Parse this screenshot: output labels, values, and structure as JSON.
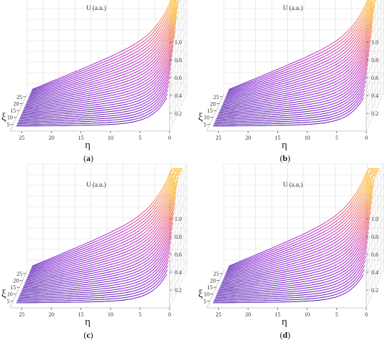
{
  "chart_data": [
    {
      "panel": "a",
      "type": "surface3d",
      "title": "U (a.u.)",
      "caption": "a",
      "xlabel": "η",
      "ylabel": "ξ",
      "x_ticks": [
        "25",
        "20",
        "15",
        "10",
        "5",
        "0"
      ],
      "y_ticks": [
        "5",
        "10",
        "15",
        "20",
        "25"
      ],
      "z_ticks": [
        "0.2",
        "0.4",
        "0.6",
        "0.8",
        "1.0"
      ],
      "xlim": [
        0,
        27
      ],
      "ylim": [
        0,
        27
      ],
      "zlim": [
        0,
        1.2
      ],
      "n_curves": 30,
      "peak_value": 1.0,
      "colormap": [
        "#2d1e8c",
        "#8b2bd6",
        "#c039c9",
        "#ee6a7a",
        "#fdc04a"
      ]
    },
    {
      "panel": "b",
      "type": "surface3d",
      "title": "U (a.u.)",
      "caption": "b",
      "xlabel": "η",
      "ylabel": "ξ",
      "x_ticks": [
        "25",
        "20",
        "15",
        "10",
        "5",
        "0"
      ],
      "y_ticks": [
        "5",
        "10",
        "15",
        "20",
        "25"
      ],
      "z_ticks": [
        "0.2",
        "0.4",
        "0.6",
        "0.8",
        "1.0"
      ],
      "xlim": [
        0,
        27
      ],
      "ylim": [
        0,
        27
      ],
      "zlim": [
        0,
        1.2
      ],
      "n_curves": 30,
      "peak_value": 1.0,
      "colormap": [
        "#2d1e8c",
        "#8b2bd6",
        "#c039c9",
        "#ee6a7a",
        "#fdc04a"
      ]
    },
    {
      "panel": "c",
      "type": "surface3d",
      "title": "U (a.u.)",
      "caption": "c",
      "xlabel": "η",
      "ylabel": "ξ",
      "x_ticks": [
        "25",
        "20",
        "15",
        "10",
        "5",
        "0"
      ],
      "y_ticks": [
        "5",
        "10",
        "15",
        "20",
        "25"
      ],
      "z_ticks": [
        "0.2",
        "0.4",
        "0.6",
        "0.8",
        "1.0"
      ],
      "xlim": [
        0,
        27
      ],
      "ylim": [
        0,
        27
      ],
      "zlim": [
        0,
        1.2
      ],
      "n_curves": 30,
      "peak_value": 1.0,
      "colormap": [
        "#2d1e8c",
        "#8b2bd6",
        "#c039c9",
        "#ee6a7a",
        "#fdc04a"
      ]
    },
    {
      "panel": "d",
      "type": "surface3d",
      "title": "U (a.u.)",
      "caption": "d",
      "xlabel": "η",
      "ylabel": "ξ",
      "x_ticks": [
        "25",
        "20",
        "15",
        "10",
        "5",
        "0"
      ],
      "y_ticks": [
        "5",
        "10",
        "15",
        "20",
        "25"
      ],
      "z_ticks": [
        "0.2",
        "0.4",
        "0.6",
        "0.8",
        "1.0"
      ],
      "xlim": [
        0,
        27
      ],
      "ylim": [
        0,
        27
      ],
      "zlim": [
        0,
        1.2
      ],
      "n_curves": 30,
      "peak_value": 1.0,
      "colormap": [
        "#2d1e8c",
        "#8b2bd6",
        "#c039c9",
        "#ee6a7a",
        "#fdc04a"
      ]
    }
  ]
}
